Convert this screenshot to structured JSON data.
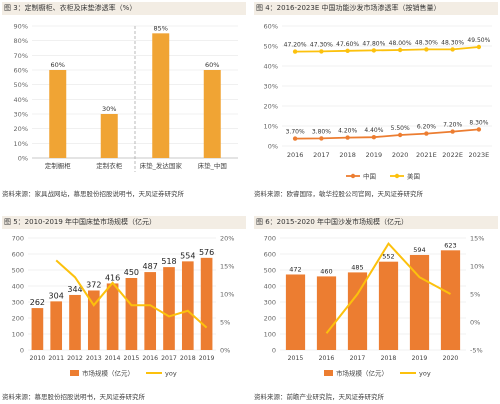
{
  "chart_data": [
    {
      "type": "bar",
      "title": "图 3：定制橱柜、衣柜及床垫渗透率（%）",
      "categories": [
        "定制橱柜",
        "定制衣柜",
        "床垫_发达国家",
        "床垫_中国"
      ],
      "values": [
        60,
        30,
        85,
        60
      ],
      "value_labels": [
        "60%",
        "30%",
        "85%",
        "60%"
      ],
      "ylim": [
        0,
        90
      ],
      "yticks": [
        "0%",
        "10%",
        "20%",
        "30%",
        "40%",
        "50%",
        "60%",
        "70%",
        "80%",
        "90%"
      ],
      "grid": true,
      "colors": [
        "#f0a434"
      ],
      "source": "资料来源：家具战网站，慕思股份招股说明书，天风证券研究所"
    },
    {
      "type": "line",
      "title": "图 4：2016-2023E 中国功能沙发市场渗透率（按销售量）",
      "categories": [
        "2016",
        "2017",
        "2018",
        "2019",
        "2020",
        "2021E",
        "2022E",
        "2023E"
      ],
      "series": [
        {
          "name": "中国",
          "values": [
            3.7,
            3.8,
            4.2,
            4.4,
            5.5,
            6.2,
            7.2,
            8.3
          ],
          "labels": [
            "3.70%",
            "3.80%",
            "4.20%",
            "4.40%",
            "5.50%",
            "6.20%",
            "7.20%",
            "8.30%"
          ],
          "color": "#ec7d31"
        },
        {
          "name": "美国",
          "values": [
            47.2,
            47.3,
            47.6,
            47.8,
            48.0,
            48.3,
            48.3,
            49.5
          ],
          "labels": [
            "47.20%",
            "47.30%",
            "47.60%",
            "47.80%",
            "48.00%",
            "48.30%",
            "48.30%",
            "49.50%"
          ],
          "color": "#fcc10d"
        }
      ],
      "ylim": [
        0,
        60
      ],
      "yticks": [
        "0%",
        "10%",
        "20%",
        "30%",
        "40%",
        "50%",
        "60%"
      ],
      "legend": "bottom",
      "source": "资料来源：欧睿国际，敏华控股公司官网，天风证券研究所"
    },
    {
      "type": "bar",
      "title": "图 5：2010-2019 年中国床垫市场规模（亿元）",
      "categories": [
        "2010",
        "2011",
        "2012",
        "2013",
        "2014",
        "2015",
        "2016",
        "2017",
        "2018",
        "2019"
      ],
      "series": [
        {
          "name": "市场规模（亿元）",
          "values": [
            262,
            304,
            344,
            372,
            416,
            450,
            487,
            518,
            554,
            576
          ],
          "color": "#ec7d31",
          "axis": "left"
        },
        {
          "name": "yoy",
          "values": [
            null,
            16,
            13,
            8,
            12,
            8,
            8,
            6,
            7,
            4
          ],
          "color": "#fcc10d",
          "axis": "right",
          "type": "line"
        }
      ],
      "ylim": [
        0,
        700
      ],
      "yticks": [
        "0",
        "100",
        "200",
        "300",
        "400",
        "500",
        "600",
        "700"
      ],
      "y2lim": [
        0,
        20
      ],
      "y2ticks": [
        "0%",
        "5%",
        "10%",
        "15%",
        "20%"
      ],
      "legend": "bottom",
      "source": "资料来源：慕思股份招股说明书，天风证券研究所"
    },
    {
      "type": "bar",
      "title": "图 6：2015-2020 年中国沙发市场规模（亿元）",
      "categories": [
        "2015",
        "2016",
        "2017",
        "2018",
        "2019",
        "2020"
      ],
      "series": [
        {
          "name": "市场规模（亿元）",
          "values": [
            472,
            460,
            485,
            552,
            594,
            623
          ],
          "color": "#ec7d31",
          "axis": "left"
        },
        {
          "name": "yoy",
          "values": [
            null,
            -2,
            5,
            14,
            8,
            5
          ],
          "color": "#fcc10d",
          "axis": "right",
          "type": "line"
        }
      ],
      "ylim": [
        0,
        700
      ],
      "yticks": [
        "0",
        "100",
        "200",
        "300",
        "400",
        "500",
        "600",
        "700"
      ],
      "y2lim": [
        -5,
        15
      ],
      "y2ticks": [
        "-5%",
        "0%",
        "5%",
        "10%",
        "15%"
      ],
      "legend": "bottom",
      "source": "资料来源：前瞻产业研究院，天风证券研究所"
    }
  ]
}
